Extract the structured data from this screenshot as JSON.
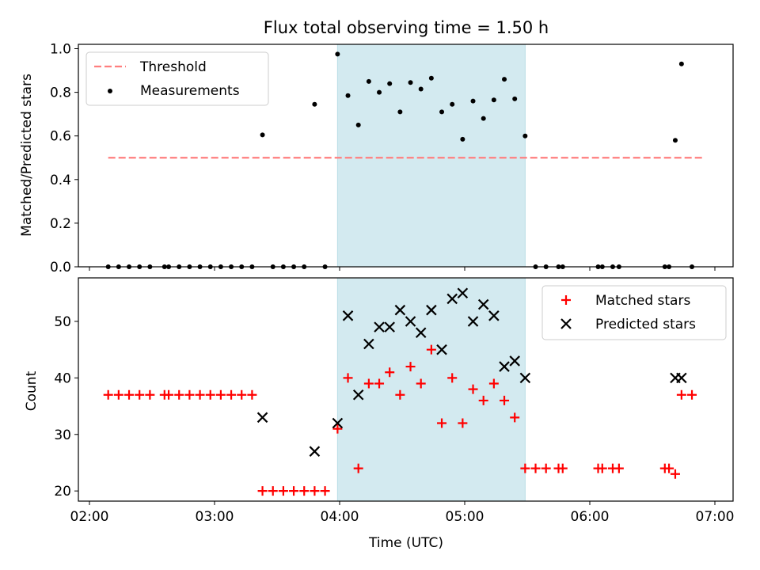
{
  "chart_data": [
    {
      "type": "scatter",
      "title": "Flux total observing time = 1.50 h",
      "xlabel": "",
      "ylabel": "Matched/Predicted stars",
      "ylim": [
        0,
        1.02
      ],
      "yticks": [
        "0.0",
        "0.2",
        "0.4",
        "0.6",
        "0.8",
        "1.0"
      ],
      "xticks": [
        "02:00",
        "03:00",
        "04:00",
        "05:00",
        "06:00",
        "07:00"
      ],
      "grid": false,
      "legend_position": "top-left",
      "shaded_interval": [
        "03:59",
        "05:29"
      ],
      "threshold": {
        "name": "Threshold",
        "value": 0.5,
        "x_range": [
          "02:09",
          "06:55"
        ]
      },
      "series": [
        {
          "name": "Measurements",
          "marker": "dot",
          "x": [
            "02:09",
            "02:14",
            "02:19",
            "02:24",
            "02:29",
            "02:36",
            "02:38",
            "02:43",
            "02:48",
            "02:53",
            "02:58",
            "03:03",
            "03:08",
            "03:13",
            "03:18",
            "03:23",
            "03:28",
            "03:33",
            "03:38",
            "03:43",
            "03:48",
            "03:53",
            "03:59",
            "04:04",
            "04:09",
            "04:14",
            "04:19",
            "04:24",
            "04:29",
            "04:34",
            "04:39",
            "04:44",
            "04:49",
            "04:54",
            "04:59",
            "05:04",
            "05:09",
            "05:14",
            "05:19",
            "05:24",
            "05:29",
            "05:34",
            "05:39",
            "05:45",
            "05:47",
            "06:04",
            "06:06",
            "06:11",
            "06:14",
            "06:36",
            "06:38",
            "06:41",
            "06:44",
            "06:49"
          ],
          "y": [
            0,
            0,
            0,
            0,
            0,
            0,
            0,
            0,
            0,
            0,
            0,
            0,
            0,
            0,
            0,
            0.605,
            0,
            0,
            0,
            0,
            0.745,
            0,
            0.975,
            0.785,
            0.65,
            0.85,
            0.8,
            0.84,
            0.71,
            0.845,
            0.815,
            0.865,
            0.71,
            0.745,
            0.585,
            0.76,
            0.68,
            0.765,
            0.86,
            0.77,
            0.6,
            0,
            0,
            0,
            0,
            0,
            0,
            0,
            0,
            0,
            0,
            0.58,
            0.93,
            0
          ]
        }
      ]
    },
    {
      "type": "scatter",
      "title": "",
      "xlabel": "Time (UTC)",
      "ylabel": "Count",
      "ylim": [
        18.2,
        57.7
      ],
      "yticks": [
        "20",
        "30",
        "40",
        "50"
      ],
      "xticks": [
        "02:00",
        "03:00",
        "04:00",
        "05:00",
        "06:00",
        "07:00"
      ],
      "grid": false,
      "legend_position": "top-right",
      "shaded_interval": [
        "03:59",
        "05:29"
      ],
      "series": [
        {
          "name": "Matched stars",
          "marker": "plus",
          "x": [
            "02:09",
            "02:14",
            "02:19",
            "02:24",
            "02:29",
            "02:36",
            "02:38",
            "02:43",
            "02:48",
            "02:53",
            "02:58",
            "03:03",
            "03:08",
            "03:13",
            "03:18",
            "03:23",
            "03:28",
            "03:33",
            "03:38",
            "03:43",
            "03:48",
            "03:53",
            "03:59",
            "04:04",
            "04:09",
            "04:14",
            "04:19",
            "04:24",
            "04:29",
            "04:34",
            "04:39",
            "04:44",
            "04:49",
            "04:54",
            "04:59",
            "05:04",
            "05:09",
            "05:14",
            "05:19",
            "05:24",
            "05:29",
            "05:34",
            "05:39",
            "05:45",
            "05:47",
            "06:04",
            "06:06",
            "06:11",
            "06:14",
            "06:36",
            "06:38",
            "06:41",
            "06:44",
            "06:49"
          ],
          "y": [
            37,
            37,
            37,
            37,
            37,
            37,
            37,
            37,
            37,
            37,
            37,
            37,
            37,
            37,
            37,
            20,
            20,
            20,
            20,
            20,
            20,
            20,
            31,
            40,
            24,
            39,
            39,
            41,
            37,
            42,
            39,
            45,
            32,
            40,
            32,
            38,
            36,
            39,
            36,
            33,
            24,
            24,
            24,
            24,
            24,
            24,
            24,
            24,
            24,
            24,
            24,
            23,
            37,
            37
          ]
        },
        {
          "name": "Predicted stars",
          "marker": "x",
          "x": [
            "03:23",
            "03:48",
            "03:59",
            "04:04",
            "04:09",
            "04:14",
            "04:19",
            "04:24",
            "04:29",
            "04:34",
            "04:39",
            "04:44",
            "04:49",
            "04:54",
            "04:59",
            "05:04",
            "05:09",
            "05:14",
            "05:19",
            "05:24",
            "05:29",
            "06:41",
            "06:44"
          ],
          "y": [
            33,
            27,
            32,
            51,
            37,
            46,
            49,
            49,
            52,
            50,
            48,
            52,
            45,
            54,
            55,
            50,
            53,
            51,
            42,
            43,
            40,
            40,
            40
          ]
        }
      ]
    }
  ],
  "colors": {
    "shade": "#d3eaf0",
    "shade_edge": "#b8dde6",
    "threshold": "#ff7f7f",
    "measurements": "#000000",
    "matched": "#ff0000",
    "predicted": "#000000"
  }
}
